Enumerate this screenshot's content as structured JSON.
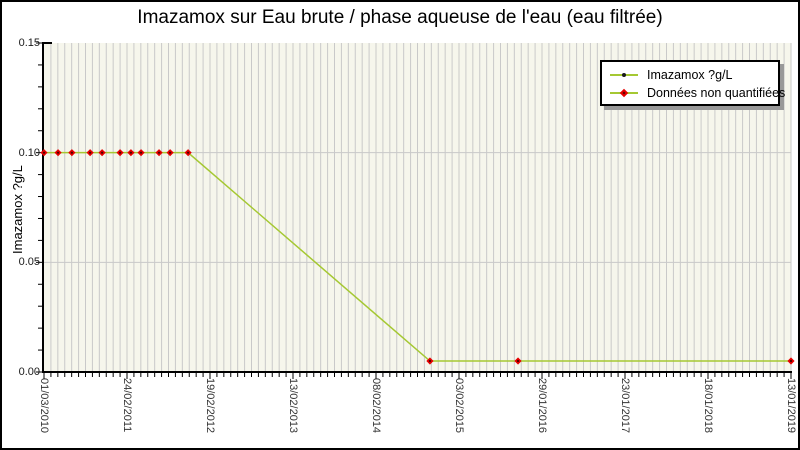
{
  "title": "Imazamox sur Eau brute / phase aqueuse de l'eau (eau filtrée)",
  "y_axis": {
    "label": "Imazamox ?g/L",
    "tick_labels": [
      "0.00",
      "0.05",
      "0.10",
      "0.15"
    ]
  },
  "legend": {
    "items": [
      {
        "label": "Imazamox ?g/L",
        "marker": "line-dot"
      },
      {
        "label": "Données non quantifiées",
        "marker": "red-diamond"
      }
    ]
  },
  "colors": {
    "plot_bg": "#f6f6ec",
    "grid": "#c9c9c9",
    "axis": "#000000",
    "line": "#a5c832",
    "non_quantified": "#e60000",
    "marker_core": "#4d0000",
    "text": "#1a1a1a",
    "legend_shadow": "#999999"
  },
  "chart_data": {
    "type": "line",
    "title": "Imazamox sur Eau brute / phase aqueuse de l'eau (eau filtrée)",
    "xlabel": "",
    "ylabel": "Imazamox ?g/L",
    "ylim": [
      0,
      0.15
    ],
    "y_major_ticks": [
      0,
      0.05,
      0.1,
      0.15
    ],
    "y_minor_step": 0.01,
    "grid": true,
    "legend_position": "top-right",
    "x_range_days": 3240,
    "x_minor_step_days": 30,
    "x_major_tick_days": [
      0,
      360,
      720,
      1080,
      1440,
      1800,
      2160,
      2520,
      2880,
      3240
    ],
    "x_tick_labels": [
      "01/03/2010",
      "24/02/2011",
      "19/02/2012",
      "13/02/2013",
      "08/02/2014",
      "03/02/2015",
      "29/01/2016",
      "23/01/2017",
      "18/01/2018",
      "13/01/2019"
    ],
    "series": [
      {
        "name": "Imazamox ?g/L",
        "color": "#a5c832",
        "points": [
          {
            "date": "01/03/2010",
            "day": 0,
            "value": 0.1,
            "quantified": false
          },
          {
            "date": "01/05/2010",
            "day": 61,
            "value": 0.1,
            "quantified": false
          },
          {
            "date": "30/06/2010",
            "day": 121,
            "value": 0.1,
            "quantified": false
          },
          {
            "date": "17/09/2010",
            "day": 200,
            "value": 0.1,
            "quantified": false
          },
          {
            "date": "08/11/2010",
            "day": 252,
            "value": 0.1,
            "quantified": false
          },
          {
            "date": "25/01/2011",
            "day": 330,
            "value": 0.1,
            "quantified": false
          },
          {
            "date": "14/03/2011",
            "day": 377,
            "value": 0.1,
            "quantified": false
          },
          {
            "date": "26/04/2011",
            "day": 421,
            "value": 0.1,
            "quantified": false
          },
          {
            "date": "13/07/2011",
            "day": 499,
            "value": 0.1,
            "quantified": false
          },
          {
            "date": "30/08/2011",
            "day": 547,
            "value": 0.1,
            "quantified": false
          },
          {
            "date": "16/11/2011",
            "day": 625,
            "value": 0.1,
            "quantified": false
          },
          {
            "date": "30/09/2014",
            "day": 1674,
            "value": 0.005,
            "quantified": false
          },
          {
            "date": "17/10/2015",
            "day": 2056,
            "value": 0.005,
            "quantified": false
          },
          {
            "date": "13/01/2019",
            "day": 3240,
            "value": 0.005,
            "quantified": false
          }
        ]
      }
    ]
  }
}
